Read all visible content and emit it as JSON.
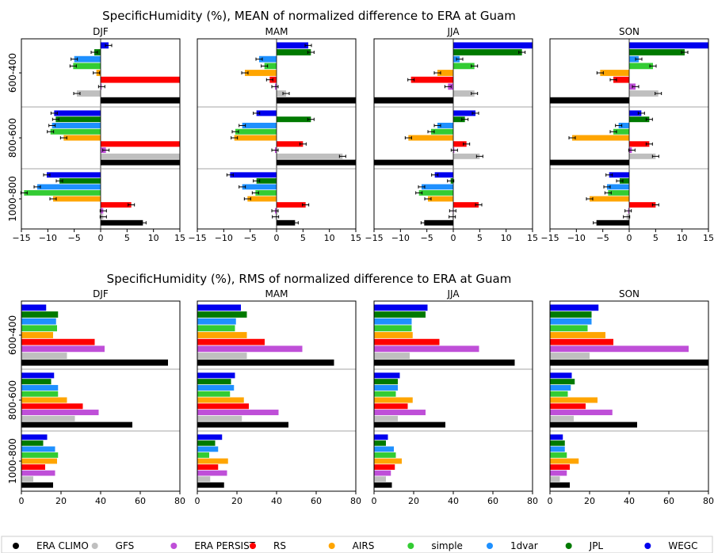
{
  "charts": [
    {
      "key": "mean",
      "title": "SpecificHumidity (%), MEAN of normalized difference to ERA at Guam",
      "type": "bar",
      "orientation": "horizontal",
      "xlim": [
        -15,
        15
      ],
      "xticks": [
        "−15",
        "−10",
        "−5",
        "0",
        "5",
        "10",
        "15"
      ],
      "xtick_values": [
        -15,
        -10,
        -5,
        0,
        5,
        10,
        15
      ],
      "zero_line": true,
      "error_bars": true
    },
    {
      "key": "rms",
      "title": "SpecificHumidity (%), RMS of normalized difference to ERA at Guam",
      "type": "bar",
      "orientation": "horizontal",
      "xlim": [
        0,
        80
      ],
      "xticks": [
        "0",
        "20",
        "40",
        "60",
        "80"
      ],
      "xtick_values": [
        0,
        20,
        40,
        60,
        80
      ],
      "zero_line": false,
      "error_bars": false
    }
  ],
  "seasons": [
    "DJF",
    "MAM",
    "JJA",
    "SON"
  ],
  "layers": [
    "600-400",
    "800-600",
    "1000-800"
  ],
  "legend": {
    "placement": "bottom",
    "entries": [
      {
        "key": "ERA CLIMO",
        "label": "ERA CLIMO",
        "color": "#000000"
      },
      {
        "key": "GFS",
        "label": "GFS",
        "color": "#bfbfbf"
      },
      {
        "key": "ERA PERSIST",
        "label": "ERA PERSIST",
        "color": "#bf4fd8"
      },
      {
        "key": "RS",
        "label": "RS",
        "color": "#ff0000"
      },
      {
        "key": "AIRS",
        "label": "AIRS",
        "color": "#ffa500"
      },
      {
        "key": "simple",
        "label": "simple",
        "color": "#33cc33"
      },
      {
        "key": "1dvar",
        "label": "1dvar",
        "color": "#1e90ff"
      },
      {
        "key": "JPL",
        "label": "JPL",
        "color": "#007a00"
      },
      {
        "key": "WEGC",
        "label": "WEGC",
        "color": "#0000ee"
      }
    ]
  },
  "chart_data": [
    {
      "type": "bar",
      "orientation": "horizontal",
      "title": "SpecificHumidity (%), MEAN of normalized difference to ERA at Guam",
      "xlim": [
        -15,
        15
      ],
      "series_order": [
        "ERA CLIMO",
        "GFS",
        "ERA PERSIST",
        "RS",
        "AIRS",
        "simple",
        "1dvar",
        "JPL",
        "WEGC"
      ],
      "panels": {
        "DJF": {
          "600-400": {
            "ERA CLIMO": 15,
            "GFS": -4.5,
            "ERA PERSIST": 0.2,
            "RS": 15,
            "AIRS": -0.8,
            "simple": -5.2,
            "1dvar": -5,
            "JPL": -1.2,
            "WEGC": 1.5
          },
          "800-600": {
            "ERA CLIMO": 15,
            "GFS": 15,
            "ERA PERSIST": 1,
            "RS": 15,
            "AIRS": -7,
            "simple": -9.5,
            "1dvar": -9.2,
            "JPL": -8.5,
            "WEGC": -8.8
          },
          "1000-800": {
            "ERA CLIMO": 8,
            "GFS": 0.5,
            "ERA PERSIST": 0.5,
            "RS": 5.8,
            "AIRS": -9,
            "simple": -14.5,
            "1dvar": -12,
            "JPL": -7.8,
            "WEGC": -10.2
          }
        },
        "MAM": {
          "600-400": {
            "ERA CLIMO": 15,
            "GFS": 1.8,
            "ERA PERSIST": -0.3,
            "RS": -1.3,
            "AIRS": -6,
            "simple": -2.3,
            "1dvar": -3.3,
            "JPL": 6.5,
            "WEGC": 6
          },
          "800-600": {
            "ERA CLIMO": 15,
            "GFS": 12.5,
            "ERA PERSIST": -0.3,
            "RS": 5,
            "AIRS": -8,
            "simple": -7.8,
            "1dvar": -6.5,
            "JPL": 6.5,
            "WEGC": -3.8
          },
          "1000-800": {
            "ERA CLIMO": 3.5,
            "GFS": -0.2,
            "ERA PERSIST": -0.3,
            "RS": 5.5,
            "AIRS": -5.5,
            "simple": -4,
            "1dvar": -6.5,
            "JPL": -3.8,
            "WEGC": -8.8
          }
        },
        "JJA": {
          "600-400": {
            "ERA CLIMO": -15,
            "GFS": 4,
            "ERA PERSIST": -1,
            "RS": -8,
            "AIRS": -3,
            "simple": 4,
            "1dvar": 1.2,
            "JPL": 13,
            "WEGC": 15
          },
          "800-600": {
            "ERA CLIMO": -15,
            "GFS": 5,
            "ERA PERSIST": 0.2,
            "RS": 2.5,
            "AIRS": -8.5,
            "simple": -4.2,
            "1dvar": -3,
            "JPL": 2.2,
            "WEGC": 4.2
          },
          "1000-800": {
            "ERA CLIMO": -5.5,
            "GFS": -0.2,
            "ERA PERSIST": -0.1,
            "RS": 4.8,
            "AIRS": -4.8,
            "simple": -6.5,
            "1dvar": -6,
            "JPL": -0.5,
            "WEGC": -3.5
          }
        },
        "SON": {
          "600-400": {
            "ERA CLIMO": -15,
            "GFS": 5.5,
            "ERA PERSIST": 1.2,
            "RS": -3,
            "AIRS": -5.5,
            "simple": 4.5,
            "1dvar": 1.8,
            "JPL": 10.5,
            "WEGC": 15
          },
          "800-600": {
            "ERA CLIMO": -15,
            "GFS": 5,
            "ERA PERSIST": 0.5,
            "RS": 3.8,
            "AIRS": -10.8,
            "simple": -3,
            "1dvar": -2,
            "JPL": 3.8,
            "WEGC": 2.3
          },
          "1000-800": {
            "ERA CLIMO": -6.2,
            "GFS": -0.5,
            "ERA PERSIST": -0.2,
            "RS": 5,
            "AIRS": -7.5,
            "simple": -4,
            "1dvar": -4.2,
            "JPL": -1.8,
            "WEGC": -3.8
          }
        }
      }
    },
    {
      "type": "bar",
      "orientation": "horizontal",
      "title": "SpecificHumidity (%), RMS of normalized difference to ERA at Guam",
      "xlim": [
        0,
        80
      ],
      "series_order": [
        "ERA CLIMO",
        "GFS",
        "ERA PERSIST",
        "RS",
        "AIRS",
        "simple",
        "1dvar",
        "JPL",
        "WEGC"
      ],
      "panels": {
        "DJF": {
          "600-400": {
            "ERA CLIMO": 74,
            "GFS": 23,
            "ERA PERSIST": 42,
            "RS": 37,
            "AIRS": 16,
            "simple": 18,
            "1dvar": 17.5,
            "JPL": 18.5,
            "WEGC": 12.5
          },
          "800-600": {
            "ERA CLIMO": 56,
            "GFS": 27,
            "ERA PERSIST": 39,
            "RS": 31,
            "AIRS": 23,
            "simple": 18.5,
            "1dvar": 18.5,
            "JPL": 15,
            "WEGC": 16.5
          },
          "1000-800": {
            "ERA CLIMO": 16,
            "GFS": 6,
            "ERA PERSIST": 17,
            "RS": 12,
            "AIRS": 18,
            "simple": 18.5,
            "1dvar": 17,
            "JPL": 11,
            "WEGC": 13
          }
        },
        "MAM": {
          "600-400": {
            "ERA CLIMO": 69,
            "GFS": 25,
            "ERA PERSIST": 53,
            "RS": 34,
            "AIRS": 25,
            "simple": 19,
            "1dvar": 19.5,
            "JPL": 25,
            "WEGC": 22
          },
          "800-600": {
            "ERA CLIMO": 46,
            "GFS": 22.5,
            "ERA PERSIST": 41,
            "RS": 26,
            "AIRS": 23.5,
            "simple": 16.5,
            "1dvar": 18.5,
            "JPL": 17,
            "WEGC": 19
          },
          "1000-800": {
            "ERA CLIMO": 13.5,
            "GFS": 6.5,
            "ERA PERSIST": 15,
            "RS": 10.5,
            "AIRS": 15.5,
            "simple": 6,
            "1dvar": 10.5,
            "JPL": 9,
            "WEGC": 12.5
          }
        },
        "JJA": {
          "600-400": {
            "ERA CLIMO": 71,
            "GFS": 18,
            "ERA PERSIST": 53,
            "RS": 33,
            "AIRS": 19.5,
            "simple": 19,
            "1dvar": 19,
            "JPL": 26,
            "WEGC": 27
          },
          "800-600": {
            "ERA CLIMO": 36,
            "GFS": 12,
            "ERA PERSIST": 26,
            "RS": 17,
            "AIRS": 19.5,
            "simple": 11,
            "1dvar": 12,
            "JPL": 12,
            "WEGC": 13
          },
          "1000-800": {
            "ERA CLIMO": 9,
            "GFS": 6,
            "ERA PERSIST": 8.5,
            "RS": 10.5,
            "AIRS": 14,
            "simple": 11,
            "1dvar": 10,
            "JPL": 6,
            "WEGC": 7
          }
        },
        "SON": {
          "600-400": {
            "ERA CLIMO": 80,
            "GFS": 20,
            "ERA PERSIST": 70,
            "RS": 32,
            "AIRS": 28,
            "simple": 19,
            "1dvar": 21,
            "JPL": 21,
            "WEGC": 24.5
          },
          "800-600": {
            "ERA CLIMO": 44,
            "GFS": 12,
            "ERA PERSIST": 31.5,
            "RS": 18,
            "AIRS": 24,
            "simple": 9,
            "1dvar": 10.5,
            "JPL": 12.5,
            "WEGC": 11
          },
          "1000-800": {
            "ERA CLIMO": 10,
            "GFS": 5,
            "ERA PERSIST": 8.5,
            "RS": 10,
            "AIRS": 14.5,
            "simple": 8.5,
            "1dvar": 7.5,
            "JPL": 7.5,
            "WEGC": 6.5
          }
        }
      }
    }
  ]
}
